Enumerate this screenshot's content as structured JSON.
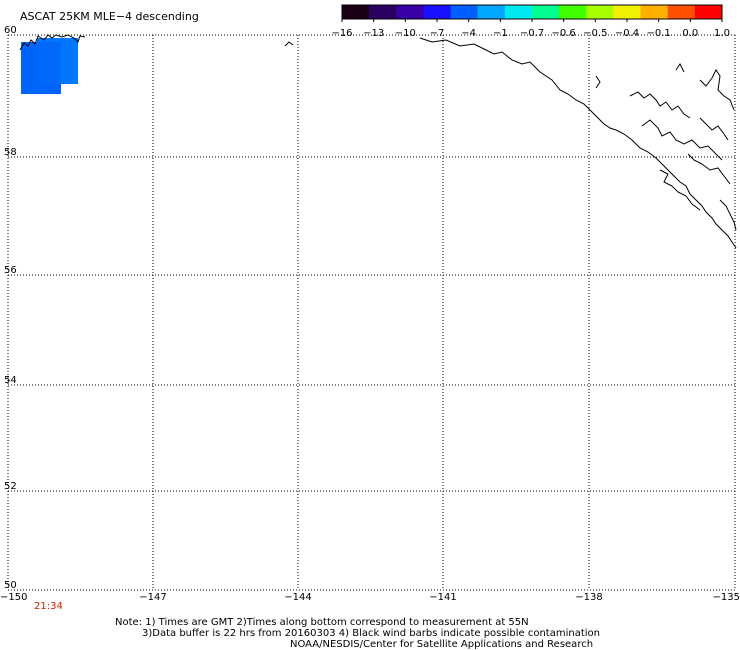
{
  "title": "ASCAT 25KM MLE−4 descending",
  "colorbar": {
    "colors": [
      "#1a0014",
      "#2a0060",
      "#3a00a8",
      "#1a10ff",
      "#0060ff",
      "#00a8ff",
      "#00e8f0",
      "#00ff90",
      "#40ff00",
      "#a8ff00",
      "#f0f000",
      "#ffb000",
      "#ff5000",
      "#ff0000"
    ],
    "ticks": [
      "−16",
      "−13",
      "−10",
      "−7",
      "−4",
      "−1",
      "−0.7",
      "−0.6",
      "−0.5",
      "−0.4",
      "−0.1",
      "0.0",
      "1.0"
    ]
  },
  "map": {
    "lat_labels": [
      "60",
      "58",
      "56",
      "54",
      "52",
      "50"
    ],
    "lon_labels": [
      "−150",
      "−147",
      "−144",
      "−141",
      "−138",
      "−135"
    ],
    "time_label": "21:34",
    "time_color": "#cc2200",
    "data_color": "#0066ff"
  },
  "notes": {
    "line1": "Note: 1) Times are GMT 2)Times along bottom correspond to measurement at 55N",
    "line2": "3)Data buffer is 22 hrs from 20160303 4) Black wind barbs indicate possible contamination",
    "line3": "NOAA/NESDIS/Center for Satellite Applications and Research"
  }
}
